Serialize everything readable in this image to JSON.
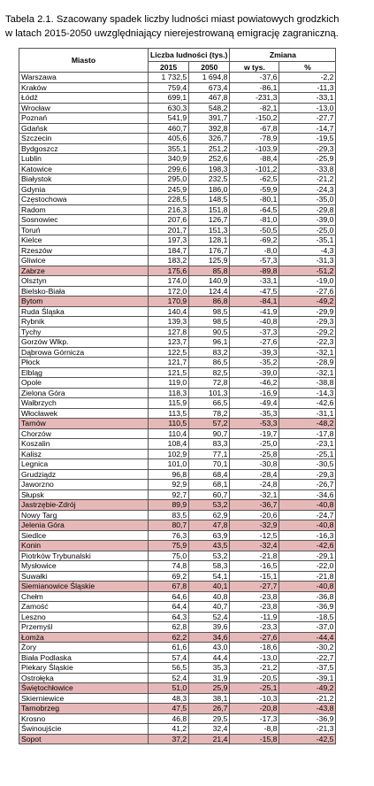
{
  "title": {
    "line1": "Tabela 2.1. Szacowany spadek liczby ludności miast powiatowych grodzkich",
    "line2": "w latach 2015-2050 uwzględniający nierejestrowaną emigrację zagraniczną."
  },
  "headers": {
    "city": "Miasto",
    "population": "Liczba ludności (tys.)",
    "change": "Zmiana",
    "y2015": "2015",
    "y2050": "2050",
    "thousands": "w tys.",
    "percent": "%"
  },
  "highlight_color": "#e6b9b8",
  "rows": [
    {
      "city": "Warszawa",
      "y2015": "1 732,5",
      "y2050": "1 694,8",
      "abs": "-37,6",
      "pct": "-2,2",
      "hl": false
    },
    {
      "city": "Kraków",
      "y2015": "759,4",
      "y2050": "673,4",
      "abs": "-86,1",
      "pct": "-11,3",
      "hl": false
    },
    {
      "city": "Łódź",
      "y2015": "699,1",
      "y2050": "467,8",
      "abs": "-231,3",
      "pct": "-33,1",
      "hl": false
    },
    {
      "city": "Wrocław",
      "y2015": "630,3",
      "y2050": "548,2",
      "abs": "-82,1",
      "pct": "-13,0",
      "hl": false
    },
    {
      "city": "Poznań",
      "y2015": "541,9",
      "y2050": "391,7",
      "abs": "-150,2",
      "pct": "-27,7",
      "hl": false
    },
    {
      "city": "Gdańsk",
      "y2015": "460,7",
      "y2050": "392,8",
      "abs": "-67,8",
      "pct": "-14,7",
      "hl": false
    },
    {
      "city": "Szczecin",
      "y2015": "405,6",
      "y2050": "326,7",
      "abs": "-78,9",
      "pct": "-19,5",
      "hl": false
    },
    {
      "city": "Bydgoszcz",
      "y2015": "355,1",
      "y2050": "251,2",
      "abs": "-103,9",
      "pct": "-29,3",
      "hl": false
    },
    {
      "city": "Lublin",
      "y2015": "340,9",
      "y2050": "252,6",
      "abs": "-88,4",
      "pct": "-25,9",
      "hl": false
    },
    {
      "city": "Katowice",
      "y2015": "299,6",
      "y2050": "198,3",
      "abs": "-101,2",
      "pct": "-33,8",
      "hl": false
    },
    {
      "city": "Białystok",
      "y2015": "295,0",
      "y2050": "232,5",
      "abs": "-62,5",
      "pct": "-21,2",
      "hl": false
    },
    {
      "city": "Gdynia",
      "y2015": "245,9",
      "y2050": "186,0",
      "abs": "-59,9",
      "pct": "-24,3",
      "hl": false
    },
    {
      "city": "Częstochowa",
      "y2015": "228,5",
      "y2050": "148,5",
      "abs": "-80,1",
      "pct": "-35,0",
      "hl": false
    },
    {
      "city": "Radom",
      "y2015": "216,3",
      "y2050": "151,8",
      "abs": "-64,5",
      "pct": "-29,8",
      "hl": false
    },
    {
      "city": "Sosnowiec",
      "y2015": "207,6",
      "y2050": "126,7",
      "abs": "-81,0",
      "pct": "-39,0",
      "hl": false
    },
    {
      "city": "Toruń",
      "y2015": "201,7",
      "y2050": "151,3",
      "abs": "-50,5",
      "pct": "-25,0",
      "hl": false
    },
    {
      "city": "Kielce",
      "y2015": "197,3",
      "y2050": "128,1",
      "abs": "-69,2",
      "pct": "-35,1",
      "hl": false
    },
    {
      "city": "Rzeszów",
      "y2015": "184,7",
      "y2050": "176,7",
      "abs": "-8,0",
      "pct": "-4,3",
      "hl": false
    },
    {
      "city": "Gliwice",
      "y2015": "183,2",
      "y2050": "125,9",
      "abs": "-57,3",
      "pct": "-31,3",
      "hl": false
    },
    {
      "city": "Zabrze",
      "y2015": "175,6",
      "y2050": "85,8",
      "abs": "-89,8",
      "pct": "-51,2",
      "hl": true
    },
    {
      "city": "Olsztyn",
      "y2015": "174,0",
      "y2050": "140,9",
      "abs": "-33,1",
      "pct": "-19,0",
      "hl": false
    },
    {
      "city": "Bielsko-Biała",
      "y2015": "172,0",
      "y2050": "124,4",
      "abs": "-47,5",
      "pct": "-27,6",
      "hl": false
    },
    {
      "city": "Bytom",
      "y2015": "170,9",
      "y2050": "86,8",
      "abs": "-84,1",
      "pct": "-49,2",
      "hl": true
    },
    {
      "city": "Ruda Śląska",
      "y2015": "140,4",
      "y2050": "98,5",
      "abs": "-41,9",
      "pct": "-29,9",
      "hl": false
    },
    {
      "city": "Rybnik",
      "y2015": "139,3",
      "y2050": "98,5",
      "abs": "-40,8",
      "pct": "-29,3",
      "hl": false
    },
    {
      "city": "Tychy",
      "y2015": "127,8",
      "y2050": "90,5",
      "abs": "-37,3",
      "pct": "-29,2",
      "hl": false
    },
    {
      "city": "Gorzów Wlkp.",
      "y2015": "123,7",
      "y2050": "96,1",
      "abs": "-27,6",
      "pct": "-22,3",
      "hl": false
    },
    {
      "city": "Dąbrowa Górnicza",
      "y2015": "122,5",
      "y2050": "83,2",
      "abs": "-39,3",
      "pct": "-32,1",
      "hl": false
    },
    {
      "city": "Płock",
      "y2015": "121,7",
      "y2050": "86,5",
      "abs": "-35,2",
      "pct": "-28,9",
      "hl": false
    },
    {
      "city": "Elbląg",
      "y2015": "121,5",
      "y2050": "82,5",
      "abs": "-39,0",
      "pct": "-32,1",
      "hl": false
    },
    {
      "city": "Opole",
      "y2015": "119,0",
      "y2050": "72,8",
      "abs": "-46,2",
      "pct": "-38,8",
      "hl": false
    },
    {
      "city": "Zielona Góra",
      "y2015": "118,3",
      "y2050": "101,3",
      "abs": "-16,9",
      "pct": "-14,3",
      "hl": false
    },
    {
      "city": "Wałbrzych",
      "y2015": "115,9",
      "y2050": "66,5",
      "abs": "-49,4",
      "pct": "-42,6",
      "hl": false
    },
    {
      "city": "Włocławek",
      "y2015": "113,5",
      "y2050": "78,2",
      "abs": "-35,3",
      "pct": "-31,1",
      "hl": false
    },
    {
      "city": "Tarnów",
      "y2015": "110,5",
      "y2050": "57,2",
      "abs": "-53,3",
      "pct": "-48,2",
      "hl": true
    },
    {
      "city": "Chorzów",
      "y2015": "110,4",
      "y2050": "90,7",
      "abs": "-19,7",
      "pct": "-17,8",
      "hl": false
    },
    {
      "city": "Koszalin",
      "y2015": "108,4",
      "y2050": "83,3",
      "abs": "-25,0",
      "pct": "-23,1",
      "hl": false
    },
    {
      "city": "Kalisz",
      "y2015": "102,9",
      "y2050": "77,1",
      "abs": "-25,8",
      "pct": "-25,1",
      "hl": false
    },
    {
      "city": "Legnica",
      "y2015": "101,0",
      "y2050": "70,1",
      "abs": "-30,8",
      "pct": "-30,5",
      "hl": false
    },
    {
      "city": "Grudziądz",
      "y2015": "96,8",
      "y2050": "68,4",
      "abs": "-28,4",
      "pct": "-29,3",
      "hl": false
    },
    {
      "city": "Jaworzno",
      "y2015": "92,9",
      "y2050": "68,1",
      "abs": "-24,8",
      "pct": "-26,7",
      "hl": false
    },
    {
      "city": "Słupsk",
      "y2015": "92,7",
      "y2050": "60,7",
      "abs": "-32,1",
      "pct": "-34,6",
      "hl": false
    },
    {
      "city": "Jastrzębie-Zdrój",
      "y2015": "89,9",
      "y2050": "53,2",
      "abs": "-36,7",
      "pct": "-40,8",
      "hl": true
    },
    {
      "city": "Nowy Targ",
      "y2015": "83,5",
      "y2050": "62,9",
      "abs": "-20,6",
      "pct": "-24,7",
      "hl": false
    },
    {
      "city": "Jelenia Góra",
      "y2015": "80,7",
      "y2050": "47,8",
      "abs": "-32,9",
      "pct": "-40,8",
      "hl": true
    },
    {
      "city": "Siedlce",
      "y2015": "76,3",
      "y2050": "63,9",
      "abs": "-12,5",
      "pct": "-16,3",
      "hl": false
    },
    {
      "city": "Konin",
      "y2015": "75,9",
      "y2050": "43,5",
      "abs": "-32,4",
      "pct": "-42,6",
      "hl": true
    },
    {
      "city": "Piotrków Trybunalski",
      "y2015": "75,0",
      "y2050": "53,2",
      "abs": "-21,8",
      "pct": "-29,1",
      "hl": false
    },
    {
      "city": "Mysłowice",
      "y2015": "74,8",
      "y2050": "58,3",
      "abs": "-16,5",
      "pct": "-22,0",
      "hl": false
    },
    {
      "city": "Suwałki",
      "y2015": "69,2",
      "y2050": "54,1",
      "abs": "-15,1",
      "pct": "-21,8",
      "hl": false
    },
    {
      "city": "Siemianowice Śląskie",
      "y2015": "67,8",
      "y2050": "40,1",
      "abs": "-27,7",
      "pct": "-40,8",
      "hl": true
    },
    {
      "city": "Chełm",
      "y2015": "64,6",
      "y2050": "40,8",
      "abs": "-23,8",
      "pct": "-36,8",
      "hl": false
    },
    {
      "city": "Zamość",
      "y2015": "64,4",
      "y2050": "40,7",
      "abs": "-23,8",
      "pct": "-36,9",
      "hl": false
    },
    {
      "city": "Leszno",
      "y2015": "64,3",
      "y2050": "52,4",
      "abs": "-11,9",
      "pct": "-18,5",
      "hl": false
    },
    {
      "city": "Przemyśl",
      "y2015": "62,8",
      "y2050": "39,6",
      "abs": "-23,3",
      "pct": "-37,0",
      "hl": false
    },
    {
      "city": "Łomża",
      "y2015": "62,2",
      "y2050": "34,6",
      "abs": "-27,6",
      "pct": "-44,4",
      "hl": true
    },
    {
      "city": "Żory",
      "y2015": "61,6",
      "y2050": "43,0",
      "abs": "-18,6",
      "pct": "-30,2",
      "hl": false
    },
    {
      "city": "Biała Podlaska",
      "y2015": "57,4",
      "y2050": "44,4",
      "abs": "-13,0",
      "pct": "-22,7",
      "hl": false
    },
    {
      "city": "Piekary Śląskie",
      "y2015": "56,5",
      "y2050": "35,3",
      "abs": "-21,2",
      "pct": "-37,5",
      "hl": false
    },
    {
      "city": "Ostrołęka",
      "y2015": "52,4",
      "y2050": "31,9",
      "abs": "-20,5",
      "pct": "-39,1",
      "hl": false
    },
    {
      "city": "Świętochłowice",
      "y2015": "51,0",
      "y2050": "25,9",
      "abs": "-25,1",
      "pct": "-49,2",
      "hl": true
    },
    {
      "city": "Skierniewice",
      "y2015": "48,3",
      "y2050": "38,1",
      "abs": "-10,3",
      "pct": "-21,2",
      "hl": false
    },
    {
      "city": "Tarnobrzeg",
      "y2015": "47,5",
      "y2050": "26,7",
      "abs": "-20,8",
      "pct": "-43,8",
      "hl": true
    },
    {
      "city": "Krosno",
      "y2015": "46,8",
      "y2050": "29,5",
      "abs": "-17,3",
      "pct": "-36,9",
      "hl": false
    },
    {
      "city": "Świnoujście",
      "y2015": "41,2",
      "y2050": "32,4",
      "abs": "-8,8",
      "pct": "-21,3",
      "hl": false
    },
    {
      "city": "Sopot",
      "y2015": "37,2",
      "y2050": "21,4",
      "abs": "-15,8",
      "pct": "-42,5",
      "hl": true
    }
  ]
}
